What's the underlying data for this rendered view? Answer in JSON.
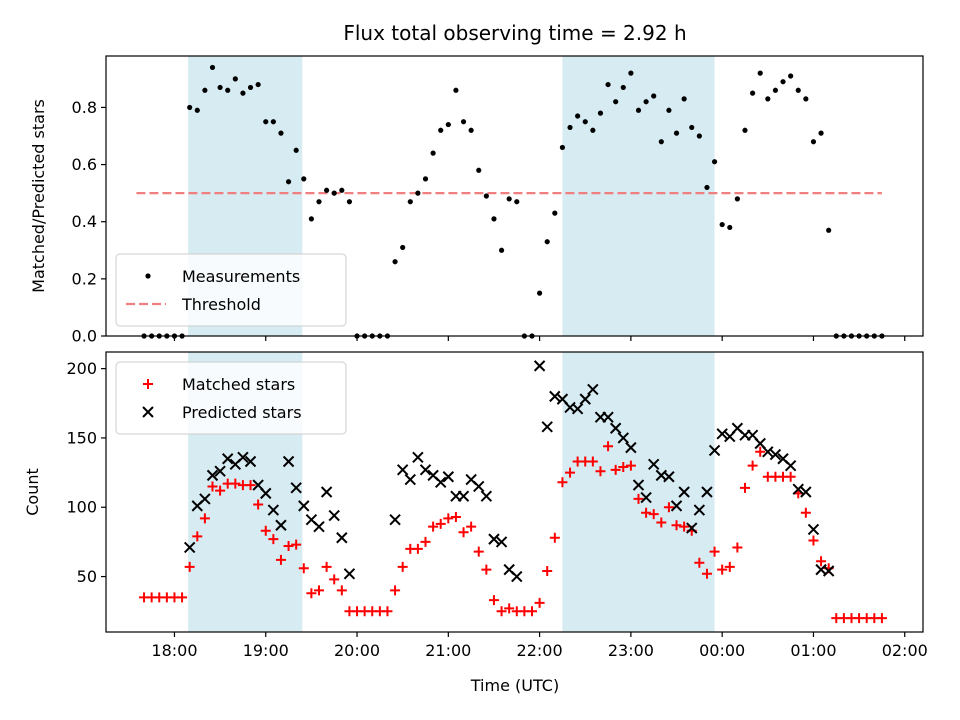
{
  "chart_data": [
    {
      "type": "scatter",
      "title": "Flux total observing time = 2.92 h",
      "xlabel": "",
      "ylabel": "Matched/Predicted stars",
      "xlim": [
        "17:15",
        "02:12"
      ],
      "ylim": [
        0,
        0.98
      ],
      "yticks": [
        "0.0",
        "0.2",
        "0.4",
        "0.6",
        "0.8"
      ],
      "grid": false,
      "legend_position": "lower-left",
      "highlight_bands": [
        [
          "18:09",
          "19:24"
        ],
        [
          "22:15",
          "23:55"
        ]
      ],
      "highlight_color": "#add8e6",
      "threshold": {
        "name": "Threshold",
        "value": 0.5,
        "x_range": [
          "17:35",
          "01:45"
        ],
        "color": "#f08080"
      },
      "series": [
        {
          "name": "Measurements",
          "color": "#000000",
          "x": [
            "17:40",
            "17:45",
            "17:50",
            "17:55",
            "18:00",
            "18:05",
            "18:10",
            "18:15",
            "18:20",
            "18:25",
            "18:30",
            "18:35",
            "18:40",
            "18:45",
            "18:50",
            "18:55",
            "19:00",
            "19:05",
            "19:10",
            "19:15",
            "19:20",
            "19:25",
            "19:30",
            "19:35",
            "19:40",
            "19:45",
            "19:50",
            "19:55",
            "20:00",
            "20:05",
            "20:10",
            "20:15",
            "20:20",
            "20:25",
            "20:30",
            "20:35",
            "20:40",
            "20:45",
            "20:50",
            "20:55",
            "21:00",
            "21:05",
            "21:10",
            "21:15",
            "21:20",
            "21:25",
            "21:30",
            "21:35",
            "21:40",
            "21:45",
            "21:50",
            "21:55",
            "22:00",
            "22:05",
            "22:10",
            "22:15",
            "22:20",
            "22:25",
            "22:30",
            "22:35",
            "22:40",
            "22:45",
            "22:50",
            "22:55",
            "23:00",
            "23:05",
            "23:10",
            "23:15",
            "23:20",
            "23:25",
            "23:30",
            "23:35",
            "23:40",
            "23:45",
            "23:50",
            "23:55",
            "00:00",
            "00:05",
            "00:10",
            "00:15",
            "00:20",
            "00:25",
            "00:30",
            "00:35",
            "00:40",
            "00:45",
            "00:50",
            "00:55",
            "01:00",
            "01:05",
            "01:10",
            "01:15",
            "01:20",
            "01:25",
            "01:30",
            "01:35",
            "01:40",
            "01:45"
          ],
          "y": [
            0,
            0,
            0,
            0,
            0,
            0,
            0.8,
            0.79,
            0.86,
            0.94,
            0.87,
            0.86,
            0.9,
            0.85,
            0.87,
            0.88,
            0.75,
            0.75,
            0.71,
            0.54,
            0.65,
            0.55,
            0.41,
            0.47,
            0.51,
            0.5,
            0.51,
            0.47,
            0,
            0,
            0,
            0,
            0,
            0.26,
            0.31,
            0.47,
            0.5,
            0.55,
            0.64,
            0.72,
            0.74,
            0.86,
            0.75,
            0.72,
            0.58,
            0.49,
            0.41,
            0.3,
            0.48,
            0.47,
            0,
            0,
            0.15,
            0.33,
            0.43,
            0.66,
            0.73,
            0.77,
            0.75,
            0.72,
            0.78,
            0.88,
            0.82,
            0.87,
            0.92,
            0.79,
            0.82,
            0.84,
            0.68,
            0.79,
            0.71,
            0.83,
            0.73,
            0.7,
            0.52,
            0.61,
            0.39,
            0.38,
            0.48,
            0.72,
            0.85,
            0.92,
            0.83,
            0.86,
            0.89,
            0.91,
            0.86,
            0.83,
            0.68,
            0.71,
            0.37,
            0,
            0,
            0,
            0,
            0,
            0,
            0
          ]
        }
      ]
    },
    {
      "type": "scatter",
      "title": "",
      "xlabel": "Time (UTC)",
      "ylabel": "Count",
      "xlim": [
        "17:15",
        "02:12"
      ],
      "ylim": [
        10,
        212
      ],
      "xticks": [
        "18:00",
        "19:00",
        "20:00",
        "21:00",
        "22:00",
        "23:00",
        "00:00",
        "01:00",
        "02:00"
      ],
      "yticks": [
        "50",
        "100",
        "150",
        "200"
      ],
      "grid": false,
      "legend_position": "upper-left",
      "highlight_bands": [
        [
          "18:09",
          "19:24"
        ],
        [
          "22:15",
          "23:55"
        ]
      ],
      "highlight_color": "#add8e6",
      "series": [
        {
          "name": "Matched stars",
          "color": "#ff0000",
          "marker": "+",
          "x": [
            "17:40",
            "17:45",
            "17:50",
            "17:55",
            "18:00",
            "18:05",
            "18:10",
            "18:15",
            "18:20",
            "18:25",
            "18:30",
            "18:35",
            "18:40",
            "18:45",
            "18:50",
            "18:55",
            "19:00",
            "19:05",
            "19:10",
            "19:15",
            "19:20",
            "19:25",
            "19:30",
            "19:35",
            "19:40",
            "19:45",
            "19:50",
            "19:55",
            "20:00",
            "20:05",
            "20:10",
            "20:15",
            "20:20",
            "20:25",
            "20:30",
            "20:35",
            "20:40",
            "20:45",
            "20:50",
            "20:55",
            "21:00",
            "21:05",
            "21:10",
            "21:15",
            "21:20",
            "21:25",
            "21:30",
            "21:35",
            "21:40",
            "21:45",
            "21:50",
            "21:55",
            "22:00",
            "22:05",
            "22:10",
            "22:15",
            "22:20",
            "22:25",
            "22:30",
            "22:35",
            "22:40",
            "22:45",
            "22:50",
            "22:55",
            "23:00",
            "23:05",
            "23:10",
            "23:15",
            "23:20",
            "23:25",
            "23:30",
            "23:35",
            "23:40",
            "23:45",
            "23:50",
            "23:55",
            "00:00",
            "00:05",
            "00:10",
            "00:15",
            "00:20",
            "00:25",
            "00:30",
            "00:35",
            "00:40",
            "00:45",
            "00:50",
            "00:55",
            "01:00",
            "01:05",
            "01:10",
            "01:15",
            "01:20",
            "01:25",
            "01:30",
            "01:35",
            "01:40",
            "01:45"
          ],
          "y": [
            35,
            35,
            35,
            35,
            35,
            35,
            57,
            79,
            92,
            115,
            112,
            117,
            117,
            116,
            116,
            102,
            83,
            77,
            62,
            72,
            73,
            56,
            38,
            40,
            57,
            48,
            40,
            25,
            25,
            25,
            25,
            25,
            25,
            40,
            57,
            70,
            70,
            75,
            86,
            88,
            92,
            93,
            82,
            86,
            68,
            55,
            33,
            25,
            27,
            25,
            25,
            25,
            31,
            54,
            78,
            118,
            125,
            133,
            133,
            133,
            126,
            144,
            127,
            129,
            130,
            106,
            96,
            95,
            89,
            100,
            87,
            86,
            83,
            60,
            52,
            68,
            55,
            57,
            71,
            114,
            130,
            140,
            122,
            122,
            122,
            122,
            110,
            96,
            76,
            61,
            56,
            20,
            20,
            20,
            20,
            20,
            20,
            20
          ]
        },
        {
          "name": "Predicted stars",
          "color": "#000000",
          "marker": "x",
          "x": [
            "18:10",
            "18:15",
            "18:20",
            "18:25",
            "18:30",
            "18:35",
            "18:40",
            "18:45",
            "18:50",
            "18:55",
            "19:00",
            "19:05",
            "19:10",
            "19:15",
            "19:20",
            "19:25",
            "19:30",
            "19:35",
            "19:40",
            "19:45",
            "19:50",
            "19:55",
            "20:25",
            "20:30",
            "20:35",
            "20:40",
            "20:45",
            "20:50",
            "20:55",
            "21:00",
            "21:05",
            "21:10",
            "21:15",
            "21:20",
            "21:25",
            "21:30",
            "21:35",
            "21:40",
            "21:45",
            "22:00",
            "22:05",
            "22:10",
            "22:15",
            "22:20",
            "22:25",
            "22:30",
            "22:35",
            "22:40",
            "22:45",
            "22:50",
            "22:55",
            "23:00",
            "23:05",
            "23:10",
            "23:15",
            "23:20",
            "23:25",
            "23:30",
            "23:35",
            "23:40",
            "23:45",
            "23:50",
            "23:55",
            "00:00",
            "00:05",
            "00:10",
            "00:15",
            "00:20",
            "00:25",
            "00:30",
            "00:35",
            "00:40",
            "00:45",
            "00:50",
            "00:55",
            "01:00",
            "01:05",
            "01:10"
          ],
          "y": [
            71,
            101,
            106,
            123,
            126,
            135,
            131,
            136,
            133,
            116,
            110,
            98,
            87,
            133,
            114,
            101,
            91,
            86,
            111,
            94,
            78,
            52,
            91,
            127,
            120,
            136,
            127,
            123,
            118,
            122,
            108,
            108,
            120,
            115,
            108,
            77,
            75,
            55,
            50,
            202,
            158,
            180,
            178,
            172,
            171,
            178,
            185,
            165,
            165,
            157,
            150,
            143,
            116,
            107,
            131,
            123,
            122,
            101,
            111,
            85,
            98,
            111,
            141,
            153,
            151,
            157,
            152,
            152,
            146,
            140,
            138,
            135,
            130,
            113,
            111,
            84,
            55,
            54
          ]
        }
      ]
    }
  ]
}
